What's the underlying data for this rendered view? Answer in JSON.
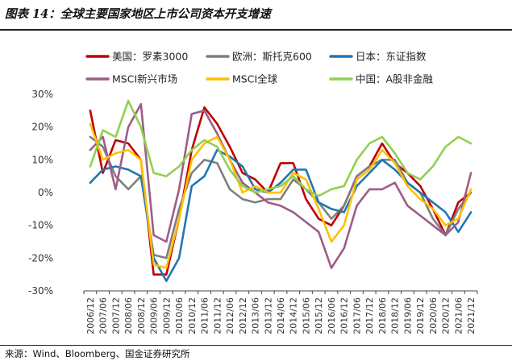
{
  "header": {
    "title": "图表 14：全球主要国家地区上市公司资本开支增速"
  },
  "footer": {
    "source": "来源：Wind、Bloomberg、国金证券研究所"
  },
  "chart_data": {
    "type": "line",
    "title": "全球主要国家地区上市公司资本开支增速",
    "xlabel": "",
    "ylabel": "",
    "ylim": [
      -30,
      30
    ],
    "yticks": [
      -30,
      -20,
      -10,
      0,
      10,
      20,
      30
    ],
    "ytick_labels": [
      "-30%",
      "-20%",
      "-10%",
      "0%",
      "10%",
      "20%",
      "30%"
    ],
    "x": [
      "2006/12",
      "2007/06",
      "2007/12",
      "2008/06",
      "2008/12",
      "2009/06",
      "2009/12",
      "2010/06",
      "2010/12",
      "2011/06",
      "2011/12",
      "2012/06",
      "2012/12",
      "2013/06",
      "2013/12",
      "2014/06",
      "2014/12",
      "2015/06",
      "2015/12",
      "2016/06",
      "2016/12",
      "2017/06",
      "2017/12",
      "2018/06",
      "2018/12",
      "2019/06",
      "2019/12",
      "2020/06",
      "2020/12",
      "2021/06",
      "2021/12"
    ],
    "legend_position": "top",
    "series": [
      {
        "name": "美国：罗素3000",
        "color": "#c00000",
        "values": [
          25,
          6,
          16,
          15,
          10,
          -25,
          -25,
          -8,
          13,
          26,
          21,
          14,
          6,
          4,
          0,
          9,
          9,
          -2,
          -8,
          -10,
          -4,
          5,
          8,
          15,
          9,
          6,
          2,
          -5,
          -13,
          -3,
          0
        ]
      },
      {
        "name": "欧洲：斯托克600",
        "color": "#7f7f7f",
        "values": [
          17,
          14,
          5,
          1,
          5,
          -19,
          -20,
          -5,
          6,
          10,
          9,
          1,
          -2,
          -3,
          -2,
          -2,
          4,
          1,
          -3,
          -8,
          -4,
          5,
          8,
          10,
          10,
          3,
          0,
          -8,
          -13,
          -5,
          0
        ]
      },
      {
        "name": "日本：东证指数",
        "color": "#1f77b4",
        "values": [
          3,
          7,
          8,
          7,
          5,
          -20,
          -27,
          -20,
          2,
          5,
          13,
          11,
          8,
          1,
          0,
          3,
          7,
          7,
          -3,
          -5,
          -6,
          2,
          6,
          10,
          7,
          3,
          0,
          -3,
          -6,
          -12,
          -6
        ]
      },
      {
        "name": "MSCI新兴市场",
        "color": "#9e5c87",
        "values": [
          13,
          17,
          1,
          20,
          27,
          -13,
          -15,
          1,
          24,
          25,
          18,
          10,
          3,
          0,
          -3,
          -4,
          -6,
          -9,
          -12,
          -23,
          -17,
          -4,
          1,
          1,
          3,
          -4,
          -7,
          -10,
          -13,
          -9,
          6
        ]
      },
      {
        "name": "MSCI全球",
        "color": "#ffc000",
        "values": [
          21,
          10,
          12,
          13,
          10,
          -22,
          -23,
          -8,
          10,
          15,
          17,
          10,
          0,
          2,
          0,
          0,
          6,
          4,
          -5,
          -15,
          -10,
          4,
          7,
          13,
          9,
          2,
          -2,
          -5,
          -10,
          -8,
          1
        ]
      },
      {
        "name": "中国：A股非金融",
        "color": "#92d050",
        "values": [
          8,
          19,
          17,
          28,
          20,
          6,
          5,
          8,
          13,
          16,
          14,
          7,
          2,
          0,
          1,
          2,
          5,
          1,
          -1,
          1,
          2,
          10,
          15,
          17,
          12,
          6,
          4,
          8,
          14,
          17,
          15
        ]
      }
    ]
  }
}
